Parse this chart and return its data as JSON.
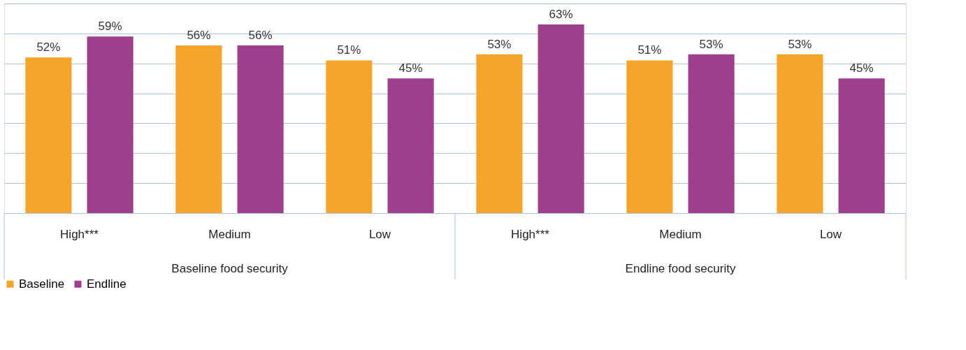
{
  "chart_data": {
    "type": "bar",
    "categories": [
      "High***",
      "Medium",
      "Low",
      "High***",
      "Medium",
      "Low"
    ],
    "annotations": [
      "Baseline food security",
      "Endline food security"
    ],
    "series": [
      {
        "name": "Baseline",
        "color": "#f5a52a",
        "values": [
          52,
          56,
          51,
          53,
          51,
          53
        ],
        "value_labels": [
          "52%",
          "56%",
          "51%",
          "53%",
          "51%",
          "53%"
        ]
      },
      {
        "name": "Endline",
        "color": "#9e3f8e",
        "values": [
          59,
          56,
          45,
          63,
          53,
          45
        ],
        "value_labels": [
          "59%",
          "56%",
          "45%",
          "63%",
          "53%",
          "45%"
        ]
      }
    ],
    "ylim": [
      0,
      70
    ],
    "yticks": [
      {
        "value": 0,
        "label": null
      },
      {
        "value": 10,
        "label": null
      },
      {
        "value": 20,
        "label": null
      },
      {
        "value": 30,
        "label": null
      },
      {
        "value": 40,
        "label": null
      },
      {
        "value": 50,
        "label": null
      },
      {
        "value": 60,
        "label": null
      },
      {
        "value": 70,
        "label": null
      }
    ],
    "grid": "y",
    "legend": "bottom",
    "tick_labels": "x"
  }
}
